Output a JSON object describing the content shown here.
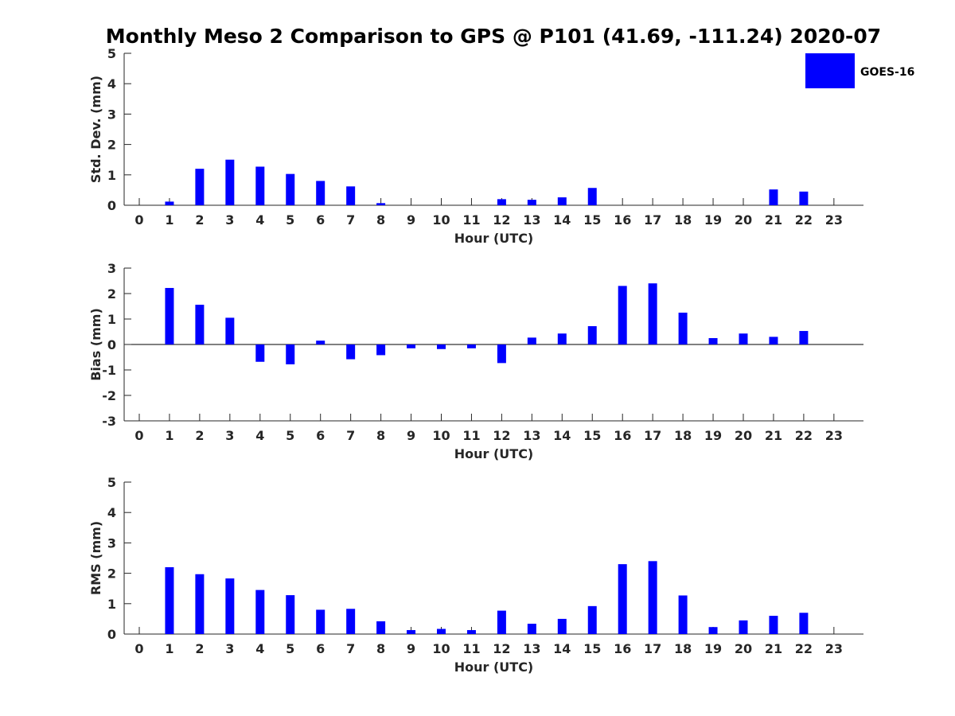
{
  "title": "Monthly Meso 2 Comparison to GPS @ P101 (41.69, -111.24) 2020-07",
  "legend": {
    "label": "GOES-16",
    "color": "#0000ff"
  },
  "chart_data": [
    {
      "type": "bar",
      "categories": [
        "0",
        "1",
        "2",
        "3",
        "4",
        "5",
        "6",
        "7",
        "8",
        "9",
        "10",
        "11",
        "12",
        "13",
        "14",
        "15",
        "16",
        "17",
        "18",
        "19",
        "20",
        "21",
        "22",
        "23"
      ],
      "series": [
        {
          "name": "GOES-16",
          "values": [
            null,
            0.12,
            1.2,
            1.5,
            1.27,
            1.03,
            0.8,
            0.62,
            0.07,
            null,
            null,
            null,
            0.2,
            0.18,
            0.26,
            0.57,
            null,
            null,
            null,
            null,
            null,
            0.52,
            0.45,
            null
          ]
        }
      ],
      "xlabel": "Hour (UTC)",
      "ylabel": "Std. Dev. (mm)",
      "ylim": [
        0,
        5
      ],
      "yticks": [
        "0",
        "1",
        "2",
        "3",
        "4",
        "5"
      ]
    },
    {
      "type": "bar",
      "categories": [
        "0",
        "1",
        "2",
        "3",
        "4",
        "5",
        "6",
        "7",
        "8",
        "9",
        "10",
        "11",
        "12",
        "13",
        "14",
        "15",
        "16",
        "17",
        "18",
        "19",
        "20",
        "21",
        "22",
        "23"
      ],
      "series": [
        {
          "name": "GOES-16",
          "values": [
            null,
            2.22,
            1.56,
            1.05,
            -0.68,
            -0.78,
            0.15,
            -0.58,
            -0.42,
            -0.15,
            -0.18,
            -0.15,
            -0.73,
            0.27,
            0.43,
            0.72,
            2.3,
            2.4,
            1.25,
            0.25,
            0.43,
            0.3,
            0.53,
            null
          ]
        }
      ],
      "xlabel": "Hour (UTC)",
      "ylabel": "Bias (mm)",
      "ylim": [
        -3,
        3
      ],
      "yticks": [
        "-3",
        "-2",
        "-1",
        "0",
        "1",
        "2",
        "3"
      ]
    },
    {
      "type": "bar",
      "categories": [
        "0",
        "1",
        "2",
        "3",
        "4",
        "5",
        "6",
        "7",
        "8",
        "9",
        "10",
        "11",
        "12",
        "13",
        "14",
        "15",
        "16",
        "17",
        "18",
        "19",
        "20",
        "21",
        "22",
        "23"
      ],
      "series": [
        {
          "name": "GOES-16",
          "values": [
            null,
            2.2,
            1.97,
            1.83,
            1.45,
            1.28,
            0.8,
            0.83,
            0.42,
            0.13,
            0.17,
            0.13,
            0.77,
            0.34,
            0.5,
            0.92,
            2.3,
            2.4,
            1.27,
            0.23,
            0.45,
            0.6,
            0.7,
            null
          ]
        }
      ],
      "xlabel": "Hour (UTC)",
      "ylabel": "RMS (mm)",
      "ylim": [
        0,
        5
      ],
      "yticks": [
        "0",
        "1",
        "2",
        "3",
        "4",
        "5"
      ]
    }
  ]
}
